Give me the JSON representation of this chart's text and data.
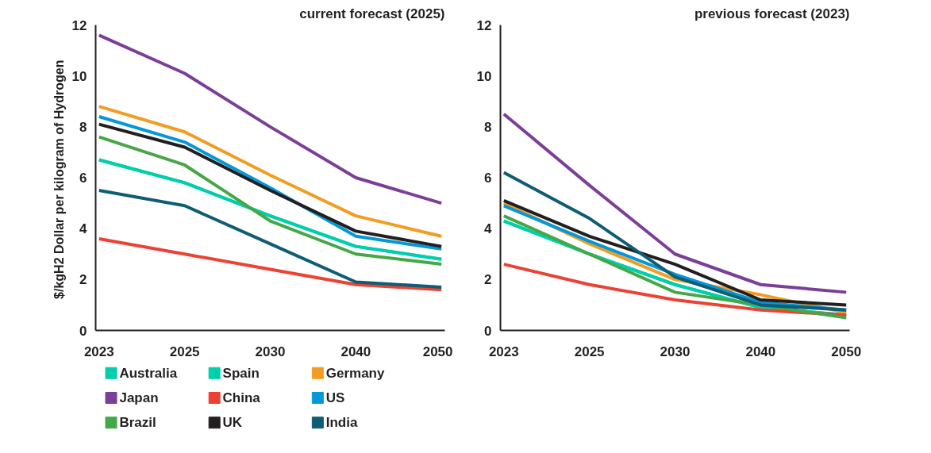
{
  "chart_data": [
    {
      "type": "line",
      "title": "current forecast (2025)",
      "ylabel": "$/kgH2  Dollar per kilogram of Hydrogen",
      "categories": [
        "2023",
        "2025",
        "2030",
        "2040",
        "2050"
      ],
      "ylim": [
        0,
        12
      ],
      "yticks": [
        0,
        2,
        4,
        6,
        8,
        10,
        12
      ],
      "grid": false,
      "legend": "bottom",
      "line_style": "solid",
      "marker": "none",
      "series": [
        {
          "name": "Australia",
          "color": "#00cfac",
          "values": [
            6.7,
            5.8,
            4.5,
            3.3,
            2.8
          ]
        },
        {
          "name": "Spain",
          "color": "#00cfac",
          "values": [
            6.7,
            5.8,
            4.5,
            3.3,
            2.8
          ]
        },
        {
          "name": "Germany",
          "color": "#f29d21",
          "values": [
            8.8,
            7.8,
            6.1,
            4.5,
            3.7
          ]
        },
        {
          "name": "Japan",
          "color": "#7c3f98",
          "values": [
            11.6,
            10.1,
            8.0,
            6.0,
            5.0
          ]
        },
        {
          "name": "China",
          "color": "#ec4234",
          "values": [
            3.6,
            3.0,
            2.4,
            1.8,
            1.6
          ]
        },
        {
          "name": "US",
          "color": "#0398d6",
          "values": [
            8.4,
            7.4,
            5.6,
            3.7,
            3.2
          ]
        },
        {
          "name": "Brazil",
          "color": "#46a748",
          "values": [
            7.6,
            6.5,
            4.3,
            3.0,
            2.6
          ]
        },
        {
          "name": "UK",
          "color": "#231f20",
          "values": [
            8.1,
            7.2,
            5.5,
            3.9,
            3.3
          ]
        },
        {
          "name": "India",
          "color": "#0e5d74",
          "values": [
            5.5,
            4.9,
            3.4,
            1.9,
            1.7
          ]
        }
      ]
    },
    {
      "type": "line",
      "title": "previous forecast (2023)",
      "categories": [
        "2023",
        "2025",
        "2030",
        "2040",
        "2050"
      ],
      "ylim": [
        0,
        12
      ],
      "yticks": [
        0,
        2,
        4,
        6,
        8,
        10,
        12
      ],
      "grid": false,
      "line_style": "solid",
      "marker": "none",
      "series": [
        {
          "color": "#00cfac",
          "values": [
            4.3,
            3.0,
            1.8,
            0.9,
            0.6
          ]
        },
        {
          "color": "#00cfac",
          "values": [
            4.3,
            3.0,
            1.8,
            0.9,
            0.6
          ]
        },
        {
          "color": "#f29d21",
          "values": [
            5.0,
            3.4,
            2.0,
            1.4,
            0.7
          ]
        },
        {
          "color": "#7c3f98",
          "values": [
            8.5,
            5.7,
            3.0,
            1.8,
            1.5
          ]
        },
        {
          "color": "#ec4234",
          "values": [
            2.6,
            1.8,
            1.2,
            0.8,
            0.6
          ]
        },
        {
          "color": "#0398d6",
          "values": [
            4.9,
            3.5,
            2.2,
            1.1,
            0.8
          ]
        },
        {
          "color": "#46a748",
          "values": [
            4.5,
            3.0,
            1.5,
            1.0,
            0.5
          ]
        },
        {
          "color": "#231f20",
          "values": [
            5.1,
            3.7,
            2.6,
            1.2,
            1.0
          ]
        },
        {
          "color": "#0e5d74",
          "values": [
            6.2,
            4.4,
            2.1,
            1.0,
            0.8
          ]
        }
      ]
    }
  ]
}
